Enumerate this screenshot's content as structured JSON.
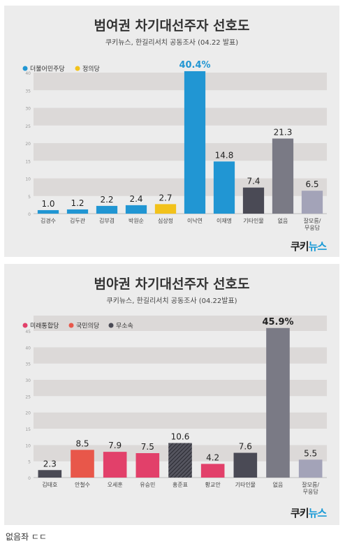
{
  "panels": [
    {
      "title": "범여권 차기대선주자 선호도",
      "subtitle": "쿠키뉴스, 한길리서치 공동조사 (04.22 발표)",
      "logo": {
        "main": "쿠키",
        "accent": "뉴스"
      }
    },
    {
      "title": "범야권 차기대선주자 선호도",
      "subtitle": "쿠키뉴스, 한길리서치 공동조사 (04.22발표)",
      "logo": {
        "main": "쿠키",
        "accent": "뉴스"
      }
    }
  ],
  "caption": "없음좌 ㄷㄷ",
  "colors": {
    "blue": "#2196d3",
    "yellow": "#f2c21b",
    "red": "#e2406a",
    "orange_red": "#e8574a",
    "dark_gray": "#4a4a55",
    "gray": "#7a7a85",
    "light_purple_gray": "#a3a3b8",
    "hatched": "#3a3a44"
  },
  "chart_data": [
    {
      "type": "bar",
      "title": "범여권 차기대선주자 선호도",
      "categories": [
        "김경수",
        "김두관",
        "김부겸",
        "박원순",
        "심상정",
        "이낙연",
        "이재명",
        "기타인물",
        "없음",
        "잘모름/무응답"
      ],
      "values": [
        1.0,
        1.2,
        2.2,
        2.4,
        2.7,
        40.4,
        14.8,
        7.4,
        21.3,
        6.5
      ],
      "value_labels": [
        "1.0",
        "1.2",
        "2.2",
        "2.4",
        "2.7",
        "40.4%",
        "14.8",
        "7.4",
        "21.3",
        "6.5"
      ],
      "bar_colors": [
        "blue",
        "blue",
        "blue",
        "blue",
        "yellow",
        "blue",
        "blue",
        "dark_gray",
        "gray",
        "light_purple_gray"
      ],
      "highlight_index": 5,
      "legend": [
        {
          "label": "더불어민주당",
          "color": "blue"
        },
        {
          "label": "정의당",
          "color": "yellow"
        }
      ],
      "legend_placement": "top-left",
      "yticks": [
        0,
        5,
        10,
        15,
        20,
        25,
        30,
        35,
        40
      ],
      "ylim": [
        0,
        40
      ],
      "grid": "alternating bands"
    },
    {
      "type": "bar",
      "title": "범야권 차기대선주자 선호도",
      "categories": [
        "김태호",
        "안철수",
        "오세훈",
        "유승민",
        "홍준표",
        "황교안",
        "기타인물",
        "없음",
        "잘모름/무응답"
      ],
      "values": [
        2.3,
        8.5,
        7.9,
        7.5,
        10.6,
        4.2,
        7.6,
        45.9,
        5.5
      ],
      "value_labels": [
        "2.3",
        "8.5",
        "7.9",
        "7.5",
        "10.6",
        "4.2",
        "7.6",
        "45.9%",
        "5.5"
      ],
      "bar_colors": [
        "dark_gray",
        "orange_red",
        "red",
        "red",
        "hatched",
        "red",
        "dark_gray",
        "gray",
        "light_purple_gray"
      ],
      "highlight_index": 7,
      "legend": [
        {
          "label": "미래통합당",
          "color": "red"
        },
        {
          "label": "국민의당",
          "color": "orange_red"
        },
        {
          "label": "무소속",
          "color": "dark_gray"
        }
      ],
      "legend_placement": "top-left",
      "yticks": [
        0,
        5,
        10,
        15,
        20,
        25,
        30,
        35,
        40,
        45
      ],
      "ylim": [
        0,
        45
      ],
      "grid": "alternating bands"
    }
  ]
}
